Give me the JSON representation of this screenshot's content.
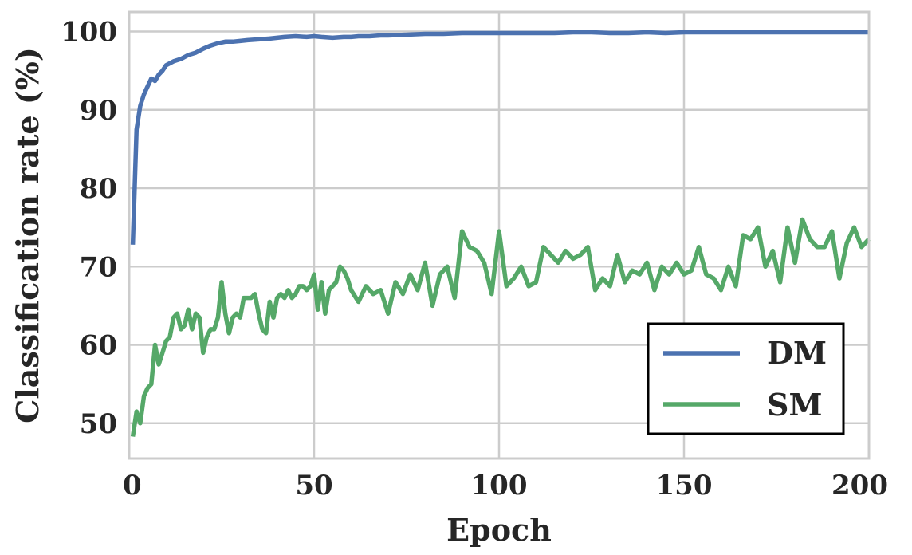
{
  "chart_data": {
    "type": "line",
    "xlabel": "Epoch",
    "ylabel": "Classification rate (%)",
    "xlim": [
      0,
      200
    ],
    "ylim": [
      45.5,
      102.5
    ],
    "xticks": [
      0,
      50,
      100,
      150,
      200
    ],
    "yticks": [
      50,
      60,
      70,
      80,
      90,
      100
    ],
    "grid": true,
    "legend_position": "lower-right",
    "colors": {
      "DM": "#4c72b0",
      "SM": "#55a868"
    },
    "series": [
      {
        "name": "DM",
        "x": [
          1,
          2,
          3,
          4,
          5,
          6,
          7,
          8,
          9,
          10,
          12,
          14,
          16,
          18,
          20,
          22,
          24,
          26,
          28,
          30,
          32,
          35,
          38,
          40,
          42,
          45,
          48,
          50,
          52,
          55,
          58,
          60,
          62,
          65,
          68,
          70,
          75,
          80,
          85,
          90,
          95,
          100,
          105,
          110,
          115,
          120,
          125,
          130,
          135,
          140,
          145,
          150,
          155,
          160,
          165,
          170,
          175,
          180,
          185,
          190,
          195,
          200
        ],
        "values": [
          72.8,
          87.5,
          90.5,
          92.0,
          93.0,
          94.0,
          93.7,
          94.5,
          95.0,
          95.7,
          96.2,
          96.5,
          97.0,
          97.3,
          97.8,
          98.2,
          98.5,
          98.7,
          98.7,
          98.8,
          98.9,
          99.0,
          99.1,
          99.2,
          99.3,
          99.4,
          99.3,
          99.4,
          99.3,
          99.2,
          99.3,
          99.3,
          99.4,
          99.4,
          99.5,
          99.5,
          99.6,
          99.7,
          99.7,
          99.8,
          99.8,
          99.8,
          99.8,
          99.8,
          99.8,
          99.9,
          99.9,
          99.8,
          99.8,
          99.9,
          99.8,
          99.9,
          99.9,
          99.9,
          99.9,
          99.9,
          99.9,
          99.9,
          99.9,
          99.9,
          99.9,
          99.9
        ]
      },
      {
        "name": "SM",
        "x": [
          1,
          2,
          3,
          4,
          5,
          6,
          7,
          8,
          9,
          10,
          11,
          12,
          13,
          14,
          15,
          16,
          17,
          18,
          19,
          20,
          21,
          22,
          23,
          24,
          25,
          26,
          27,
          28,
          29,
          30,
          31,
          32,
          33,
          34,
          35,
          36,
          37,
          38,
          39,
          40,
          41,
          42,
          43,
          44,
          45,
          46,
          47,
          48,
          49,
          50,
          51,
          52,
          53,
          54,
          55,
          56,
          57,
          58,
          59,
          60,
          62,
          64,
          66,
          68,
          70,
          72,
          74,
          76,
          78,
          80,
          82,
          84,
          86,
          88,
          90,
          92,
          94,
          96,
          98,
          100,
          102,
          104,
          106,
          108,
          110,
          112,
          114,
          116,
          118,
          120,
          122,
          124,
          126,
          128,
          130,
          132,
          134,
          136,
          138,
          140,
          142,
          144,
          146,
          148,
          150,
          152,
          154,
          156,
          158,
          160,
          162,
          164,
          166,
          168,
          170,
          172,
          174,
          176,
          178,
          180,
          182,
          184,
          186,
          188,
          190,
          192,
          194,
          196,
          198,
          200
        ],
        "values": [
          48.3,
          51.5,
          50.0,
          53.5,
          54.5,
          55.0,
          60.0,
          57.5,
          59.0,
          60.5,
          61.0,
          63.5,
          64.0,
          62.0,
          62.5,
          64.5,
          62.0,
          64.0,
          63.5,
          59.0,
          61.0,
          62.0,
          62.0,
          63.5,
          68.0,
          64.0,
          61.5,
          63.5,
          64.0,
          63.5,
          66.0,
          66.0,
          66.0,
          66.5,
          64.0,
          62.0,
          61.5,
          65.5,
          63.5,
          66.0,
          66.5,
          66.0,
          67.0,
          66.0,
          66.5,
          67.5,
          67.5,
          67.0,
          67.5,
          69.0,
          64.5,
          68.0,
          64.0,
          67.0,
          67.5,
          68.0,
          70.0,
          69.5,
          68.5,
          67.0,
          65.5,
          67.5,
          66.5,
          67.0,
          64.0,
          68.0,
          66.5,
          69.0,
          67.0,
          70.5,
          65.0,
          69.0,
          70.0,
          66.0,
          74.5,
          72.5,
          72.0,
          70.5,
          66.5,
          74.5,
          67.5,
          68.5,
          70.0,
          67.5,
          68.0,
          72.5,
          71.5,
          70.5,
          72.0,
          71.0,
          71.5,
          72.5,
          67.0,
          68.5,
          67.5,
          71.5,
          68.0,
          69.5,
          69.0,
          70.5,
          67.0,
          70.0,
          69.0,
          70.5,
          69.0,
          69.5,
          72.5,
          69.0,
          68.5,
          67.0,
          70.0,
          67.5,
          74.0,
          73.5,
          75.0,
          70.0,
          72.0,
          68.0,
          75.0,
          70.5,
          76.0,
          73.5,
          72.5,
          72.5,
          74.5,
          68.5,
          73.0,
          75.0,
          72.5,
          73.5
        ]
      }
    ]
  }
}
